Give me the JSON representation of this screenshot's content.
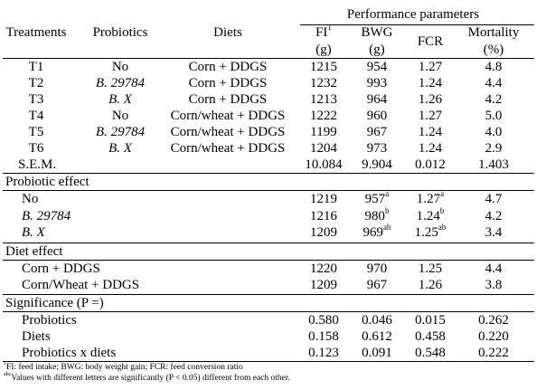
{
  "header": {
    "group": "Performance parameters",
    "treatments": "Treatments",
    "probiotics": "Probiotics",
    "diets": "Diets",
    "fi": "FI",
    "fi_sup": "1",
    "fi_unit": "(g)",
    "bwg": "BWG",
    "bwg_unit": "(g)",
    "fcr": "FCR",
    "mortality": "Mortality",
    "mortality_unit": "(%)"
  },
  "rows": [
    {
      "t": "T1",
      "p": "No",
      "p_italic": false,
      "d": "Corn + DDGS",
      "fi": "1215",
      "bwg": "954",
      "fcr": "1.27",
      "mort": "4.8"
    },
    {
      "t": "T2",
      "p": "B. 29784",
      "p_italic": true,
      "d": "Corn + DDGS",
      "fi": "1232",
      "bwg": "993",
      "fcr": "1.24",
      "mort": "4.4"
    },
    {
      "t": "T3",
      "p": "B. X",
      "p_italic": true,
      "d": "Corn + DDGS",
      "fi": "1213",
      "bwg": "964",
      "fcr": "1.26",
      "mort": "4.2"
    },
    {
      "t": "T4",
      "p": "No",
      "p_italic": false,
      "d": "Corn/wheat + DDGS",
      "fi": "1222",
      "bwg": "960",
      "fcr": "1.27",
      "mort": "5.0"
    },
    {
      "t": "T5",
      "p": "B. 29784",
      "p_italic": true,
      "d": "Corn/wheat + DDGS",
      "fi": "1199",
      "bwg": "967",
      "fcr": "1.24",
      "mort": "4.0"
    },
    {
      "t": "T6",
      "p": "B. X",
      "p_italic": true,
      "d": "Corn/wheat + DDGS",
      "fi": "1204",
      "bwg": "973",
      "fcr": "1.24",
      "mort": "2.9"
    }
  ],
  "sem": {
    "label": "S.E.M.",
    "fi": "10.084",
    "bwg": "9.904",
    "fcr": "0.012",
    "mort": "1.403"
  },
  "probiotic_effect": {
    "title": "Probiotic effect",
    "rows": [
      {
        "label": "No",
        "italic": false,
        "fi": "1219",
        "bwg": "957",
        "bwg_sup": "a",
        "fcr": "1.27",
        "fcr_sup": "a",
        "mort": "4.7"
      },
      {
        "label": "B. 29784",
        "italic": true,
        "fi": "1216",
        "bwg": "980",
        "bwg_sup": "b",
        "fcr": "1.24",
        "fcr_sup": "b",
        "mort": "4.2"
      },
      {
        "label": "B. X",
        "italic": true,
        "fi": "1209",
        "bwg": "969",
        "bwg_sup": "ab",
        "fcr": "1.25",
        "fcr_sup": "ab",
        "mort": "3.4"
      }
    ]
  },
  "diet_effect": {
    "title": "Diet effect",
    "rows": [
      {
        "label": "Corn + DDGS",
        "fi": "1220",
        "bwg": "970",
        "fcr": "1.25",
        "mort": "4.4"
      },
      {
        "label": "Corn/Wheat + DDGS",
        "fi": "1209",
        "bwg": "967",
        "fcr": "1.26",
        "mort": "3.8"
      }
    ]
  },
  "significance": {
    "title": "Significance (P =)",
    "rows": [
      {
        "label": "Probiotics",
        "fi": "0.580",
        "bwg": "0.046",
        "fcr": "0.015",
        "mort": "0.262"
      },
      {
        "label": "Diets",
        "fi": "0.158",
        "bwg": "0.612",
        "fcr": "0.458",
        "mort": "0.220"
      },
      {
        "label": "Probiotics x diets",
        "fi": "0.123",
        "bwg": "0.091",
        "fcr": "0.548",
        "mort": "0.222"
      }
    ]
  },
  "footnotes": {
    "n1_sup": "1",
    "n1": "FI: feed intake; BWG: body weight gain; FCR: feed conversion ratio",
    "n2_sup": "abc",
    "n2": "Values with different letters are significantly (P < 0.05) different from each other."
  }
}
